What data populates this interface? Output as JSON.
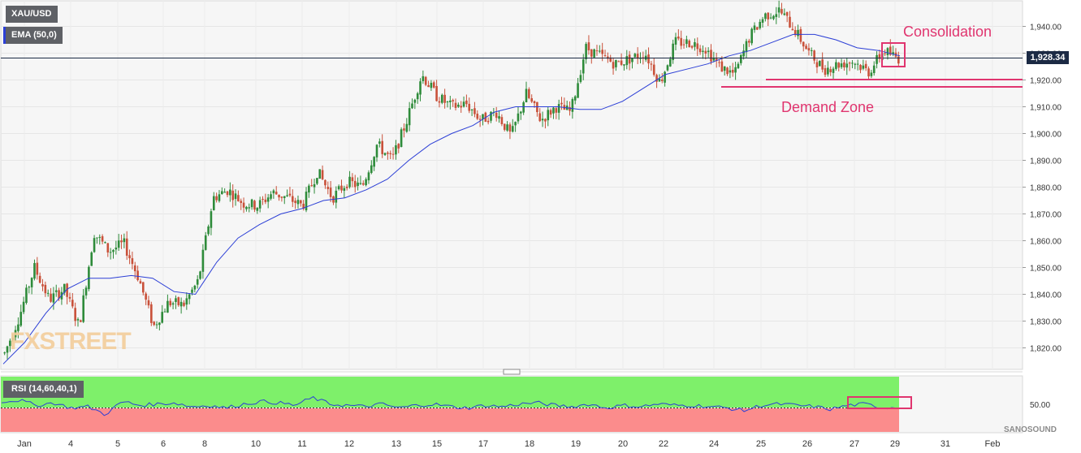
{
  "chart_data": {
    "type": "candlestick",
    "symbol": "XAU/USD",
    "indicator_label": "EMA (50,0)",
    "rsi_label": "RSI (14,60,40,1)",
    "current_price": "1,928.34",
    "annotations": {
      "consolidation": "Consolidation",
      "demand_zone": "Demand Zone"
    },
    "watermark": "FXSTREET",
    "logo": "SANOSOUND",
    "price_axis": {
      "min": 1812,
      "max": 1950,
      "ticks": [
        "1,940.00",
        "1,930.00",
        "1,920.00",
        "1,910.00",
        "1,900.00",
        "1,890.00",
        "1,880.00",
        "1,870.00",
        "1,860.00",
        "1,850.00",
        "1,840.00",
        "1,830.00",
        "1,820.00"
      ]
    },
    "rsi_axis": {
      "ticks": [
        "50.00"
      ]
    },
    "x_labels": [
      "Jan",
      "4",
      "5",
      "6",
      "8",
      "10",
      "11",
      "12",
      "13",
      "15",
      "17",
      "18",
      "19",
      "20",
      "22",
      "24",
      "25",
      "26",
      "27",
      "29",
      "31",
      "Feb"
    ],
    "price_path": [
      1818,
      1832,
      1850,
      1838,
      1842,
      1828,
      1863,
      1856,
      1859,
      1846,
      1828,
      1837,
      1836,
      1845,
      1876,
      1879,
      1874,
      1873,
      1878,
      1876,
      1873,
      1886,
      1876,
      1882,
      1880,
      1896,
      1890,
      1905,
      1922,
      1914,
      1910,
      1911,
      1905,
      1908,
      1899,
      1915,
      1905,
      1910,
      1908,
      1932,
      1929,
      1926,
      1928,
      1930,
      1919,
      1934,
      1934,
      1932,
      1925,
      1922,
      1936,
      1944,
      1946,
      1939,
      1930,
      1924,
      1926,
      1927,
      1923,
      1931,
      1928
    ],
    "ema_path": [
      1814,
      1822,
      1833,
      1842,
      1846,
      1846,
      1847,
      1846,
      1841,
      1840,
      1852,
      1861,
      1866,
      1870,
      1872,
      1875,
      1876,
      1879,
      1883,
      1890,
      1896,
      1900,
      1903,
      1908,
      1910,
      1910,
      1910,
      1909,
      1909,
      1912,
      1917,
      1922,
      1924,
      1926,
      1929,
      1931,
      1934,
      1937,
      1937,
      1935,
      1932,
      1931,
      1929
    ],
    "demand_zone_levels": [
      1920,
      1917
    ],
    "rsi_path": [
      55,
      56,
      52,
      54,
      50,
      51,
      45,
      55,
      52,
      53,
      54,
      51,
      52,
      50,
      53,
      55,
      54,
      52,
      58,
      53,
      52,
      51,
      53,
      50,
      52,
      53,
      51,
      50,
      52,
      51,
      53,
      54,
      52,
      51,
      53,
      50,
      52,
      51,
      53,
      52,
      52,
      51,
      50,
      48,
      52,
      53,
      52,
      51,
      49,
      52,
      53,
      50,
      51
    ]
  }
}
